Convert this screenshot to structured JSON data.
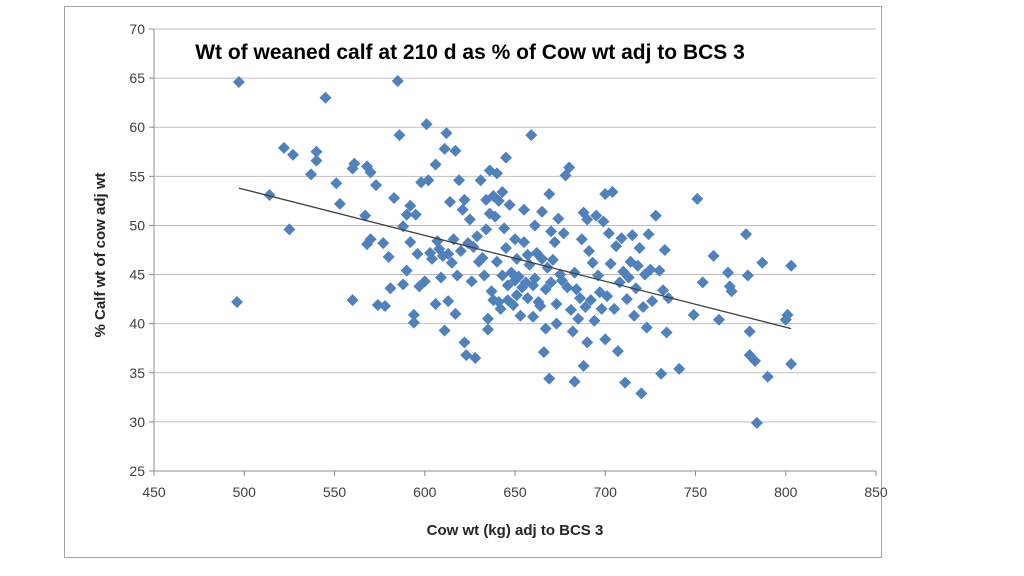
{
  "chart_data": {
    "type": "scatter",
    "title": "Wt of weaned calf at 210 d as % of Cow wt adj to BCS 3",
    "xlabel": "Cow wt (kg) adj to BCS 3",
    "ylabel": "% Calf wt of cow adj wt",
    "xlim": [
      450,
      850
    ],
    "ylim": [
      25,
      70
    ],
    "x_ticks": [
      450,
      500,
      550,
      600,
      650,
      700,
      750,
      800,
      850
    ],
    "y_ticks": [
      25,
      30,
      35,
      40,
      45,
      50,
      55,
      60,
      65,
      70
    ],
    "x_tick_labels": [
      "450",
      "500",
      "550",
      "600",
      "650",
      "700",
      "750",
      "800",
      "850"
    ],
    "y_tick_labels": [
      "25",
      "30",
      "35",
      "40",
      "45",
      "50",
      "55",
      "60",
      "65",
      "70"
    ],
    "grid": "horizontal",
    "legend": "none",
    "colors": {
      "marker": "#4f81bd",
      "trendline": "#404040",
      "grid": "#bfbfbf",
      "axis": "#8c8c8c"
    },
    "trendline": {
      "type": "linear",
      "x": [
        497,
        803
      ],
      "y": [
        53.8,
        39.5
      ]
    },
    "points": [
      [
        497,
        64.6
      ],
      [
        496,
        42.2
      ],
      [
        514,
        53.1
      ],
      [
        522,
        57.9
      ],
      [
        525,
        49.6
      ],
      [
        527,
        57.2
      ],
      [
        545,
        63.0
      ],
      [
        537,
        55.2
      ],
      [
        540,
        57.5
      ],
      [
        540,
        56.6
      ],
      [
        551,
        54.3
      ],
      [
        553,
        52.2
      ],
      [
        560,
        55.8
      ],
      [
        561,
        56.3
      ],
      [
        560,
        42.4
      ],
      [
        567,
        51.0
      ],
      [
        568,
        56.0
      ],
      [
        570,
        55.4
      ],
      [
        568,
        48.1
      ],
      [
        570,
        48.6
      ],
      [
        573,
        54.1
      ],
      [
        574,
        41.9
      ],
      [
        577,
        48.2
      ],
      [
        578,
        41.8
      ],
      [
        580,
        46.8
      ],
      [
        581,
        43.6
      ],
      [
        583,
        52.8
      ],
      [
        585,
        64.7
      ],
      [
        586,
        59.2
      ],
      [
        588,
        44.0
      ],
      [
        588,
        49.9
      ],
      [
        590,
        51.1
      ],
      [
        590,
        45.4
      ],
      [
        592,
        52.0
      ],
      [
        592,
        48.3
      ],
      [
        594,
        40.1
      ],
      [
        594,
        40.9
      ],
      [
        595,
        51.1
      ],
      [
        596,
        47.1
      ],
      [
        597,
        43.8
      ],
      [
        598,
        54.4
      ],
      [
        600,
        44.3
      ],
      [
        601,
        60.3
      ],
      [
        602,
        54.6
      ],
      [
        603,
        47.2
      ],
      [
        604,
        46.6
      ],
      [
        606,
        42.0
      ],
      [
        606,
        56.2
      ],
      [
        607,
        48.4
      ],
      [
        608,
        47.6
      ],
      [
        609,
        44.7
      ],
      [
        610,
        46.9
      ],
      [
        611,
        39.3
      ],
      [
        611,
        57.8
      ],
      [
        612,
        59.4
      ],
      [
        613,
        47.1
      ],
      [
        613,
        42.3
      ],
      [
        614,
        52.4
      ],
      [
        615,
        46.2
      ],
      [
        616,
        48.6
      ],
      [
        617,
        57.6
      ],
      [
        617,
        41.0
      ],
      [
        618,
        44.9
      ],
      [
        619,
        54.6
      ],
      [
        620,
        47.4
      ],
      [
        621,
        51.6
      ],
      [
        622,
        38.1
      ],
      [
        622,
        52.6
      ],
      [
        623,
        36.8
      ],
      [
        624,
        48.2
      ],
      [
        625,
        50.6
      ],
      [
        626,
        44.3
      ],
      [
        627,
        47.8
      ],
      [
        628,
        36.5
      ],
      [
        629,
        48.9
      ],
      [
        630,
        46.3
      ],
      [
        631,
        54.6
      ],
      [
        632,
        46.7
      ],
      [
        633,
        44.9
      ],
      [
        634,
        52.6
      ],
      [
        634,
        49.6
      ],
      [
        635,
        39.4
      ],
      [
        635,
        40.5
      ],
      [
        636,
        51.2
      ],
      [
        636,
        55.6
      ],
      [
        637,
        43.3
      ],
      [
        638,
        53.0
      ],
      [
        638,
        42.4
      ],
      [
        639,
        50.9
      ],
      [
        640,
        46.3
      ],
      [
        640,
        55.3
      ],
      [
        641,
        52.5
      ],
      [
        641,
        42.2
      ],
      [
        642,
        41.5
      ],
      [
        643,
        53.4
      ],
      [
        643,
        44.9
      ],
      [
        644,
        49.7
      ],
      [
        645,
        56.9
      ],
      [
        645,
        47.7
      ],
      [
        646,
        43.9
      ],
      [
        646,
        42.4
      ],
      [
        647,
        52.1
      ],
      [
        648,
        45.2
      ],
      [
        649,
        41.9
      ],
      [
        650,
        44.4
      ],
      [
        650,
        48.6
      ],
      [
        651,
        46.6
      ],
      [
        651,
        42.9
      ],
      [
        652,
        44.8
      ],
      [
        653,
        40.8
      ],
      [
        654,
        43.7
      ],
      [
        655,
        48.3
      ],
      [
        655,
        51.6
      ],
      [
        656,
        44.2
      ],
      [
        657,
        42.6
      ],
      [
        657,
        47.0
      ],
      [
        658,
        46.0
      ],
      [
        659,
        59.2
      ],
      [
        660,
        43.9
      ],
      [
        660,
        40.7
      ],
      [
        661,
        44.6
      ],
      [
        661,
        50.0
      ],
      [
        662,
        47.2
      ],
      [
        663,
        42.2
      ],
      [
        664,
        41.8
      ],
      [
        665,
        46.6
      ],
      [
        665,
        51.4
      ],
      [
        666,
        37.1
      ],
      [
        667,
        39.5
      ],
      [
        667,
        43.5
      ],
      [
        668,
        45.7
      ],
      [
        669,
        53.2
      ],
      [
        669,
        34.4
      ],
      [
        670,
        49.4
      ],
      [
        670,
        44.2
      ],
      [
        671,
        46.5
      ],
      [
        672,
        48.3
      ],
      [
        673,
        42.0
      ],
      [
        673,
        40.0
      ],
      [
        674,
        50.7
      ],
      [
        675,
        45.0
      ],
      [
        676,
        44.4
      ],
      [
        677,
        49.2
      ],
      [
        678,
        55.1
      ],
      [
        679,
        43.7
      ],
      [
        680,
        55.9
      ],
      [
        681,
        41.4
      ],
      [
        682,
        39.2
      ],
      [
        683,
        34.1
      ],
      [
        683,
        45.2
      ],
      [
        684,
        43.5
      ],
      [
        685,
        40.5
      ],
      [
        686,
        42.6
      ],
      [
        687,
        48.6
      ],
      [
        688,
        51.3
      ],
      [
        688,
        35.7
      ],
      [
        689,
        41.7
      ],
      [
        690,
        50.6
      ],
      [
        690,
        38.1
      ],
      [
        691,
        47.4
      ],
      [
        692,
        42.4
      ],
      [
        693,
        46.2
      ],
      [
        694,
        40.3
      ],
      [
        695,
        51.0
      ],
      [
        696,
        44.9
      ],
      [
        697,
        43.2
      ],
      [
        698,
        41.5
      ],
      [
        699,
        50.4
      ],
      [
        700,
        53.2
      ],
      [
        700,
        38.4
      ],
      [
        701,
        42.8
      ],
      [
        702,
        49.2
      ],
      [
        703,
        46.1
      ],
      [
        704,
        53.4
      ],
      [
        705,
        41.5
      ],
      [
        706,
        47.9
      ],
      [
        707,
        37.2
      ],
      [
        708,
        44.2
      ],
      [
        709,
        48.7
      ],
      [
        710,
        45.3
      ],
      [
        711,
        34.0
      ],
      [
        712,
        42.5
      ],
      [
        713,
        44.7
      ],
      [
        714,
        46.3
      ],
      [
        715,
        49.0
      ],
      [
        716,
        40.8
      ],
      [
        717,
        43.6
      ],
      [
        718,
        45.9
      ],
      [
        719,
        47.7
      ],
      [
        720,
        32.9
      ],
      [
        721,
        41.7
      ],
      [
        722,
        45.0
      ],
      [
        723,
        39.6
      ],
      [
        724,
        49.1
      ],
      [
        725,
        45.5
      ],
      [
        726,
        42.3
      ],
      [
        728,
        51.0
      ],
      [
        730,
        45.4
      ],
      [
        731,
        34.9
      ],
      [
        732,
        43.4
      ],
      [
        733,
        47.5
      ],
      [
        734,
        39.1
      ],
      [
        735,
        42.6
      ],
      [
        741,
        35.4
      ],
      [
        749,
        40.9
      ],
      [
        751,
        52.7
      ],
      [
        754,
        44.2
      ],
      [
        760,
        46.9
      ],
      [
        763,
        40.4
      ],
      [
        768,
        45.2
      ],
      [
        769,
        43.8
      ],
      [
        770,
        43.3
      ],
      [
        778,
        49.1
      ],
      [
        779,
        44.9
      ],
      [
        780,
        36.8
      ],
      [
        780,
        39.2
      ],
      [
        783,
        36.2
      ],
      [
        784,
        29.9
      ],
      [
        787,
        46.2
      ],
      [
        790,
        34.6
      ],
      [
        800,
        40.4
      ],
      [
        801,
        40.9
      ],
      [
        803,
        45.9
      ],
      [
        803,
        35.9
      ]
    ]
  }
}
